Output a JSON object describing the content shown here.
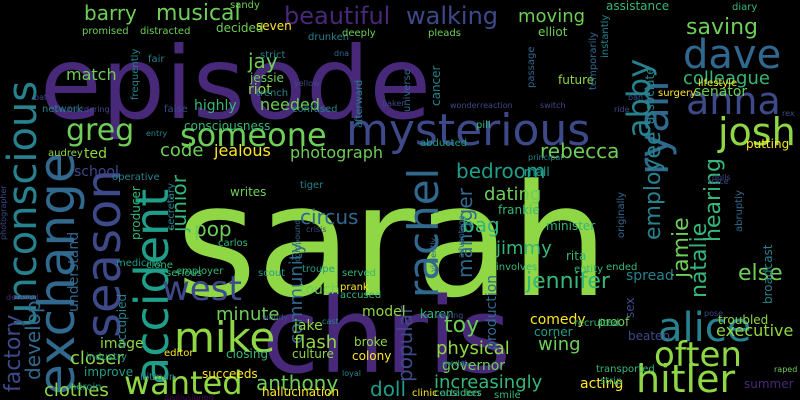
{
  "palette": {
    "background": "#000000",
    "purple_dark": "#440154",
    "purple": "#482878",
    "indigo": "#3e4989",
    "blue": "#31688e",
    "teal": "#26828e",
    "teal_green": "#1f9e89",
    "green": "#35b779",
    "light_green": "#6ece58",
    "lime": "#8fd744",
    "yellow": "#fde725"
  },
  "words": [
    {
      "text": "sarah",
      "color": "#8fd744"
    },
    {
      "text": "episode",
      "color": "#482878"
    },
    {
      "text": "chris",
      "color": "#482878"
    },
    {
      "text": "unconscious",
      "color": "#26828e"
    },
    {
      "text": "exchange",
      "color": "#31688e"
    },
    {
      "text": "season",
      "color": "#3e4989"
    },
    {
      "text": "mysterious",
      "color": "#3e4989"
    },
    {
      "text": "accident",
      "color": "#1f9e89"
    },
    {
      "text": "dave",
      "color": "#31688e"
    },
    {
      "text": "ryan",
      "color": "#31688e"
    },
    {
      "text": "anna",
      "color": "#3e4989"
    },
    {
      "text": "rachel",
      "color": "#31688e"
    },
    {
      "text": "josh",
      "color": "#8fd744"
    },
    {
      "text": "someone",
      "color": "#6ece58"
    },
    {
      "text": "greg",
      "color": "#6ece58"
    },
    {
      "text": "west",
      "color": "#3e4989"
    },
    {
      "text": "mike",
      "color": "#8fd744"
    },
    {
      "text": "alice",
      "color": "#26828e"
    },
    {
      "text": "often",
      "color": "#8fd744"
    },
    {
      "text": "wanted",
      "color": "#8fd744"
    },
    {
      "text": "hitler",
      "color": "#8fd744"
    },
    {
      "text": "abby",
      "color": "#26828e"
    },
    {
      "text": "beautiful",
      "color": "#482878"
    },
    {
      "text": "walking",
      "color": "#3e4989"
    },
    {
      "text": "saving",
      "color": "#6ece58"
    },
    {
      "text": "moving",
      "color": "#6ece58"
    },
    {
      "text": "colleague",
      "color": "#35b779"
    },
    {
      "text": "employee",
      "color": "#26828e"
    },
    {
      "text": "musical",
      "color": "#6ece58"
    },
    {
      "text": "barry",
      "color": "#6ece58"
    },
    {
      "text": "jay",
      "color": "#6ece58"
    },
    {
      "text": "bedroom",
      "color": "#1f9e89"
    },
    {
      "text": "rebecca",
      "color": "#6ece58"
    },
    {
      "text": "factory",
      "color": "#3e4989"
    },
    {
      "text": "develop",
      "color": "#31688e"
    },
    {
      "text": "clothes",
      "color": "#8fd744"
    },
    {
      "text": "jennifer",
      "color": "#35b779"
    },
    {
      "text": "manager",
      "color": "#31688e"
    },
    {
      "text": "natalie",
      "color": "#35b779"
    },
    {
      "text": "jamie",
      "color": "#6ece58"
    },
    {
      "text": "hearing",
      "color": "#35b779"
    },
    {
      "text": "else",
      "color": "#6ece58"
    },
    {
      "text": "community",
      "color": "#31688e"
    },
    {
      "text": "circus",
      "color": "#31688e"
    },
    {
      "text": "dating",
      "color": "#6ece58"
    },
    {
      "text": "bag",
      "color": "#35b779"
    },
    {
      "text": "jimmy",
      "color": "#35b779"
    },
    {
      "text": "pop",
      "color": "#6ece58"
    },
    {
      "text": "junior",
      "color": "#35b779"
    },
    {
      "text": "minute",
      "color": "#6ece58"
    },
    {
      "text": "toy",
      "color": "#6ece58"
    },
    {
      "text": "popular",
      "color": "#3e4989"
    },
    {
      "text": "doll",
      "color": "#1f9e89"
    },
    {
      "text": "increasingly",
      "color": "#35b779"
    },
    {
      "text": "anthony",
      "color": "#6ece58"
    },
    {
      "text": "flash",
      "color": "#8fd744"
    },
    {
      "text": "closer",
      "color": "#8fd744"
    },
    {
      "text": "executive",
      "color": "#8fd744"
    },
    {
      "text": "wing",
      "color": "#6ece58"
    },
    {
      "text": "comedy",
      "color": "#fde725"
    },
    {
      "text": "physical",
      "color": "#8fd744"
    },
    {
      "text": "photograph",
      "color": "#6ece58"
    },
    {
      "text": "jealous",
      "color": "#fde725"
    },
    {
      "text": "code",
      "color": "#6ece58"
    },
    {
      "text": "needed",
      "color": "#6ece58"
    },
    {
      "text": "match",
      "color": "#6ece58"
    },
    {
      "text": "consciousness",
      "color": "#35b779"
    },
    {
      "text": "riot",
      "color": "#8fd744"
    },
    {
      "text": "jessie",
      "color": "#6ece58"
    },
    {
      "text": "highly",
      "color": "#35b779"
    },
    {
      "text": "elliot",
      "color": "#6ece58"
    },
    {
      "text": "assistance",
      "color": "#35b779"
    },
    {
      "text": "senator",
      "color": "#6ece58"
    },
    {
      "text": "putting",
      "color": "#fde725"
    },
    {
      "text": "school",
      "color": "#3e4989"
    },
    {
      "text": "ted",
      "color": "#8fd744"
    },
    {
      "text": "model",
      "color": "#8fd744"
    },
    {
      "text": "touch",
      "color": "#6ece58"
    },
    {
      "text": "culture",
      "color": "#8fd744"
    },
    {
      "text": "image",
      "color": "#8fd744"
    },
    {
      "text": "jake",
      "color": "#8fd744"
    },
    {
      "text": "karen",
      "color": "#35b779"
    },
    {
      "text": "production",
      "color": "#31688e"
    },
    {
      "text": "governor",
      "color": "#6ece58"
    },
    {
      "text": "broke",
      "color": "#8fd744"
    },
    {
      "text": "colony",
      "color": "#fde725"
    },
    {
      "text": "hallucination",
      "color": "#fde725"
    },
    {
      "text": "acting",
      "color": "#fde725"
    },
    {
      "text": "understand",
      "color": "#31688e"
    },
    {
      "text": "writes",
      "color": "#6ece58"
    },
    {
      "text": "producer",
      "color": "#35b779"
    },
    {
      "text": "seven",
      "color": "#fde725"
    },
    {
      "text": "decided",
      "color": "#6ece58"
    },
    {
      "text": "frankie",
      "color": "#35b779"
    },
    {
      "text": "minister",
      "color": "#35b779"
    },
    {
      "text": "rita",
      "color": "#35b779"
    },
    {
      "text": "entity",
      "color": "#35b779"
    },
    {
      "text": "corner",
      "color": "#1f9e89"
    },
    {
      "text": "spread",
      "color": "#26828e"
    },
    {
      "text": "cancer",
      "color": "#26828e"
    },
    {
      "text": "future",
      "color": "#8fd744"
    },
    {
      "text": "lifestyle",
      "color": "#fde725"
    },
    {
      "text": "surgery",
      "color": "#fde725"
    },
    {
      "text": "diary",
      "color": "#35b779"
    },
    {
      "text": "mall",
      "color": "#1f9e89"
    },
    {
      "text": "troubled",
      "color": "#8fd744"
    },
    {
      "text": "broadcast",
      "color": "#26828e"
    },
    {
      "text": "summer",
      "color": "#482878"
    },
    {
      "text": "improve",
      "color": "#1f9e89"
    },
    {
      "text": "heroin",
      "color": "#1f9e89"
    },
    {
      "text": "sex",
      "color": "#3e4989"
    },
    {
      "text": "proof",
      "color": "#6ece58"
    },
    {
      "text": "beaten",
      "color": "#3e4989"
    },
    {
      "text": "considers",
      "color": "#6ece58"
    },
    {
      "text": "smile",
      "color": "#35b779"
    },
    {
      "text": "clinic",
      "color": "#fde725"
    },
    {
      "text": "attacker",
      "color": "#1f9e89"
    },
    {
      "text": "succeeds",
      "color": "#fde725"
    },
    {
      "text": "hitman",
      "color": "#26828e"
    },
    {
      "text": "closing",
      "color": "#35b779"
    },
    {
      "text": "editor",
      "color": "#fde725"
    },
    {
      "text": "industry",
      "color": "#1f9e89"
    },
    {
      "text": "occupied",
      "color": "#26828e"
    },
    {
      "text": "medicine",
      "color": "#1f9e89"
    },
    {
      "text": "clone",
      "color": "#35b779"
    },
    {
      "text": "serious",
      "color": "#35b779"
    },
    {
      "text": "employer",
      "color": "#35b779"
    },
    {
      "text": "scout",
      "color": "#1f9e89"
    },
    {
      "text": "troupe",
      "color": "#1f9e89"
    },
    {
      "text": "served",
      "color": "#35b779"
    },
    {
      "text": "accused",
      "color": "#35b779"
    },
    {
      "text": "prank",
      "color": "#fde725"
    },
    {
      "text": "carlos",
      "color": "#35b779"
    },
    {
      "text": "involves",
      "color": "#35b779"
    },
    {
      "text": "ended",
      "color": "#35b779"
    },
    {
      "text": "recruited",
      "color": "#35b779"
    },
    {
      "text": "transported",
      "color": "#35b779"
    },
    {
      "text": "strip",
      "color": "#35b779"
    },
    {
      "text": "associate",
      "color": "#26828e"
    },
    {
      "text": "operative",
      "color": "#26828e"
    },
    {
      "text": "secretary",
      "color": "#26828e"
    },
    {
      "text": "audrey",
      "color": "#8fd744"
    },
    {
      "text": "fair",
      "color": "#26828e"
    },
    {
      "text": "strict",
      "color": "#26828e"
    },
    {
      "text": "trench",
      "color": "#26828e"
    },
    {
      "text": "sandy",
      "color": "#6ece58"
    },
    {
      "text": "drunken",
      "color": "#26828e"
    },
    {
      "text": "deeply",
      "color": "#6ece58"
    },
    {
      "text": "pleads",
      "color": "#6ece58"
    },
    {
      "text": "promised",
      "color": "#6ece58"
    },
    {
      "text": "distracted",
      "color": "#6ece58"
    },
    {
      "text": "afterward",
      "color": "#26828e"
    },
    {
      "text": "universe",
      "color": "#31688e"
    },
    {
      "text": "passage",
      "color": "#31688e"
    },
    {
      "text": "temporarily",
      "color": "#31688e"
    },
    {
      "text": "instantly",
      "color": "#26828e"
    },
    {
      "text": "frequently",
      "color": "#26828e"
    },
    {
      "text": "network",
      "color": "#26828e"
    },
    {
      "text": "murdering",
      "color": "#3e4989"
    },
    {
      "text": "false",
      "color": "#3e4989"
    },
    {
      "text": "confused",
      "color": "#26828e"
    },
    {
      "text": "abducted",
      "color": "#1f9e89"
    },
    {
      "text": "pill",
      "color": "#35b779"
    },
    {
      "text": "tiger",
      "color": "#26828e"
    },
    {
      "text": "principal",
      "color": "#26828e"
    },
    {
      "text": "entry",
      "color": "#26828e"
    },
    {
      "text": "dna",
      "color": "#31688e"
    },
    {
      "text": "cast",
      "color": "#26828e"
    },
    {
      "text": "woody",
      "color": "#3e4989"
    },
    {
      "text": "loyal",
      "color": "#26828e"
    },
    {
      "text": "medal",
      "color": "#26828e"
    },
    {
      "text": "wonder",
      "color": "#3e4989"
    },
    {
      "text": "reaction",
      "color": "#3e4989"
    },
    {
      "text": "switch",
      "color": "#3e4989"
    },
    {
      "text": "baker",
      "color": "#3e4989"
    },
    {
      "text": "crisis",
      "color": "#3e4989"
    },
    {
      "text": "compound",
      "color": "#31688e"
    },
    {
      "text": "violently",
      "color": "#31688e"
    },
    {
      "text": "advantage",
      "color": "#31688e"
    },
    {
      "text": "originally",
      "color": "#31688e"
    },
    {
      "text": "abruptly",
      "color": "#31688e"
    },
    {
      "text": "trace",
      "color": "#3e4989"
    },
    {
      "text": "dolls",
      "color": "#3e4989"
    },
    {
      "text": "raped",
      "color": "#6ece58"
    },
    {
      "text": "pose",
      "color": "#3e4989"
    },
    {
      "text": "rex",
      "color": "#3e4989"
    },
    {
      "text": "photographer",
      "color": "#3e4989"
    },
    {
      "text": "detailed",
      "color": "#482878"
    },
    {
      "text": "staying",
      "color": "#3e4989"
    },
    {
      "text": "yellow",
      "color": "#3e4989"
    },
    {
      "text": "disillusioned",
      "color": "#440154"
    },
    {
      "text": "bat",
      "color": "#3e4989"
    },
    {
      "text": "ban",
      "color": "#3e4989"
    },
    {
      "text": "ride",
      "color": "#3e4989"
    }
  ]
}
